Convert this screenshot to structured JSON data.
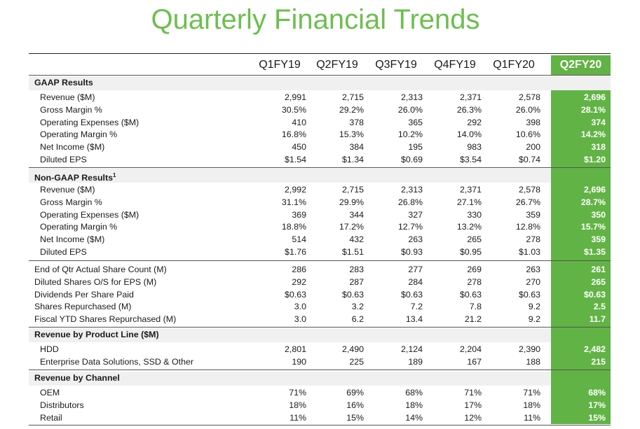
{
  "title": "Quarterly Financial Trends",
  "columns": [
    "Q1FY19",
    "Q2FY19",
    "Q3FY19",
    "Q4FY19",
    "Q1FY20",
    "Q2FY20"
  ],
  "highlight_color": "#62b345",
  "title_color": "#6cbf4e",
  "sections": [
    {
      "heading": "GAAP Results",
      "rows": [
        {
          "label": "Revenue ($M)",
          "values": [
            "2,991",
            "2,715",
            "2,313",
            "2,371",
            "2,578",
            "2,696"
          ]
        },
        {
          "label": "Gross Margin %",
          "values": [
            "30.5%",
            "29.2%",
            "26.0%",
            "26.3%",
            "26.0%",
            "28.1%"
          ]
        },
        {
          "label": "Operating Expenses ($M)",
          "values": [
            "410",
            "378",
            "365",
            "292",
            "398",
            "374"
          ]
        },
        {
          "label": "Operating Margin %",
          "values": [
            "16.8%",
            "15.3%",
            "10.2%",
            "14.0%",
            "10.6%",
            "14.2%"
          ]
        },
        {
          "label": "Net Income ($M)",
          "values": [
            "450",
            "384",
            "195",
            "983",
            "200",
            "318"
          ]
        },
        {
          "label": "Diluted EPS",
          "values": [
            "$1.54",
            "$1.34",
            "$0.69",
            "$3.54",
            "$0.74",
            "$1.20"
          ]
        }
      ]
    },
    {
      "heading": "Non-GAAP Results",
      "heading_sup": "1",
      "rows": [
        {
          "label": "Revenue ($M)",
          "values": [
            "2,992",
            "2,715",
            "2,313",
            "2,371",
            "2,578",
            "2,696"
          ]
        },
        {
          "label": "Gross Margin %",
          "values": [
            "31.1%",
            "29.9%",
            "26.8%",
            "27.1%",
            "26.7%",
            "28.7%"
          ]
        },
        {
          "label": "Operating Expenses ($M)",
          "values": [
            "369",
            "344",
            "327",
            "330",
            "359",
            "350"
          ]
        },
        {
          "label": "Operating Margin %",
          "values": [
            "18.8%",
            "17.2%",
            "12.7%",
            "13.2%",
            "12.8%",
            "15.7%"
          ]
        },
        {
          "label": "Net Income ($M)",
          "values": [
            "514",
            "432",
            "263",
            "265",
            "278",
            "359"
          ]
        },
        {
          "label": "Diluted EPS",
          "values": [
            "$1.76",
            "$1.51",
            "$0.93",
            "$0.95",
            "$1.03",
            "$1.35"
          ]
        }
      ]
    },
    {
      "heading": "",
      "rows": [
        {
          "label": "End of Qtr Actual Share Count (M)",
          "values": [
            "286",
            "283",
            "277",
            "269",
            "263",
            "261"
          ]
        },
        {
          "label": "Diluted Shares O/S for EPS (M)",
          "values": [
            "292",
            "287",
            "284",
            "278",
            "270",
            "265"
          ]
        },
        {
          "label": "Dividends Per Share Paid",
          "values": [
            "$0.63",
            "$0.63",
            "$0.63",
            "$0.63",
            "$0.63",
            "$0.63"
          ]
        },
        {
          "label": "Shares Repurchased (M)",
          "values": [
            "3.0",
            "3.2",
            "7.2",
            "7.8",
            "9.2",
            "2.5"
          ]
        },
        {
          "label": "Fiscal YTD Shares Repurchased (M)",
          "values": [
            "3.0",
            "6.2",
            "13.4",
            "21.2",
            "9.2",
            "11.7"
          ]
        }
      ]
    },
    {
      "heading": "Revenue by Product Line ($M)",
      "rows": [
        {
          "label": "HDD",
          "values": [
            "2,801",
            "2,490",
            "2,124",
            "2,204",
            "2,390",
            "2,482"
          ]
        },
        {
          "label": "Enterprise Data Solutions, SSD & Other",
          "values": [
            "190",
            "225",
            "189",
            "167",
            "188",
            "215"
          ]
        }
      ]
    },
    {
      "heading": "Revenue by Channel",
      "rows": [
        {
          "label": "OEM",
          "values": [
            "71%",
            "69%",
            "68%",
            "71%",
            "71%",
            "68%"
          ]
        },
        {
          "label": "Distributors",
          "values": [
            "18%",
            "16%",
            "18%",
            "17%",
            "18%",
            "17%"
          ]
        },
        {
          "label": "Retail",
          "values": [
            "11%",
            "15%",
            "14%",
            "12%",
            "11%",
            "15%"
          ]
        }
      ]
    }
  ]
}
